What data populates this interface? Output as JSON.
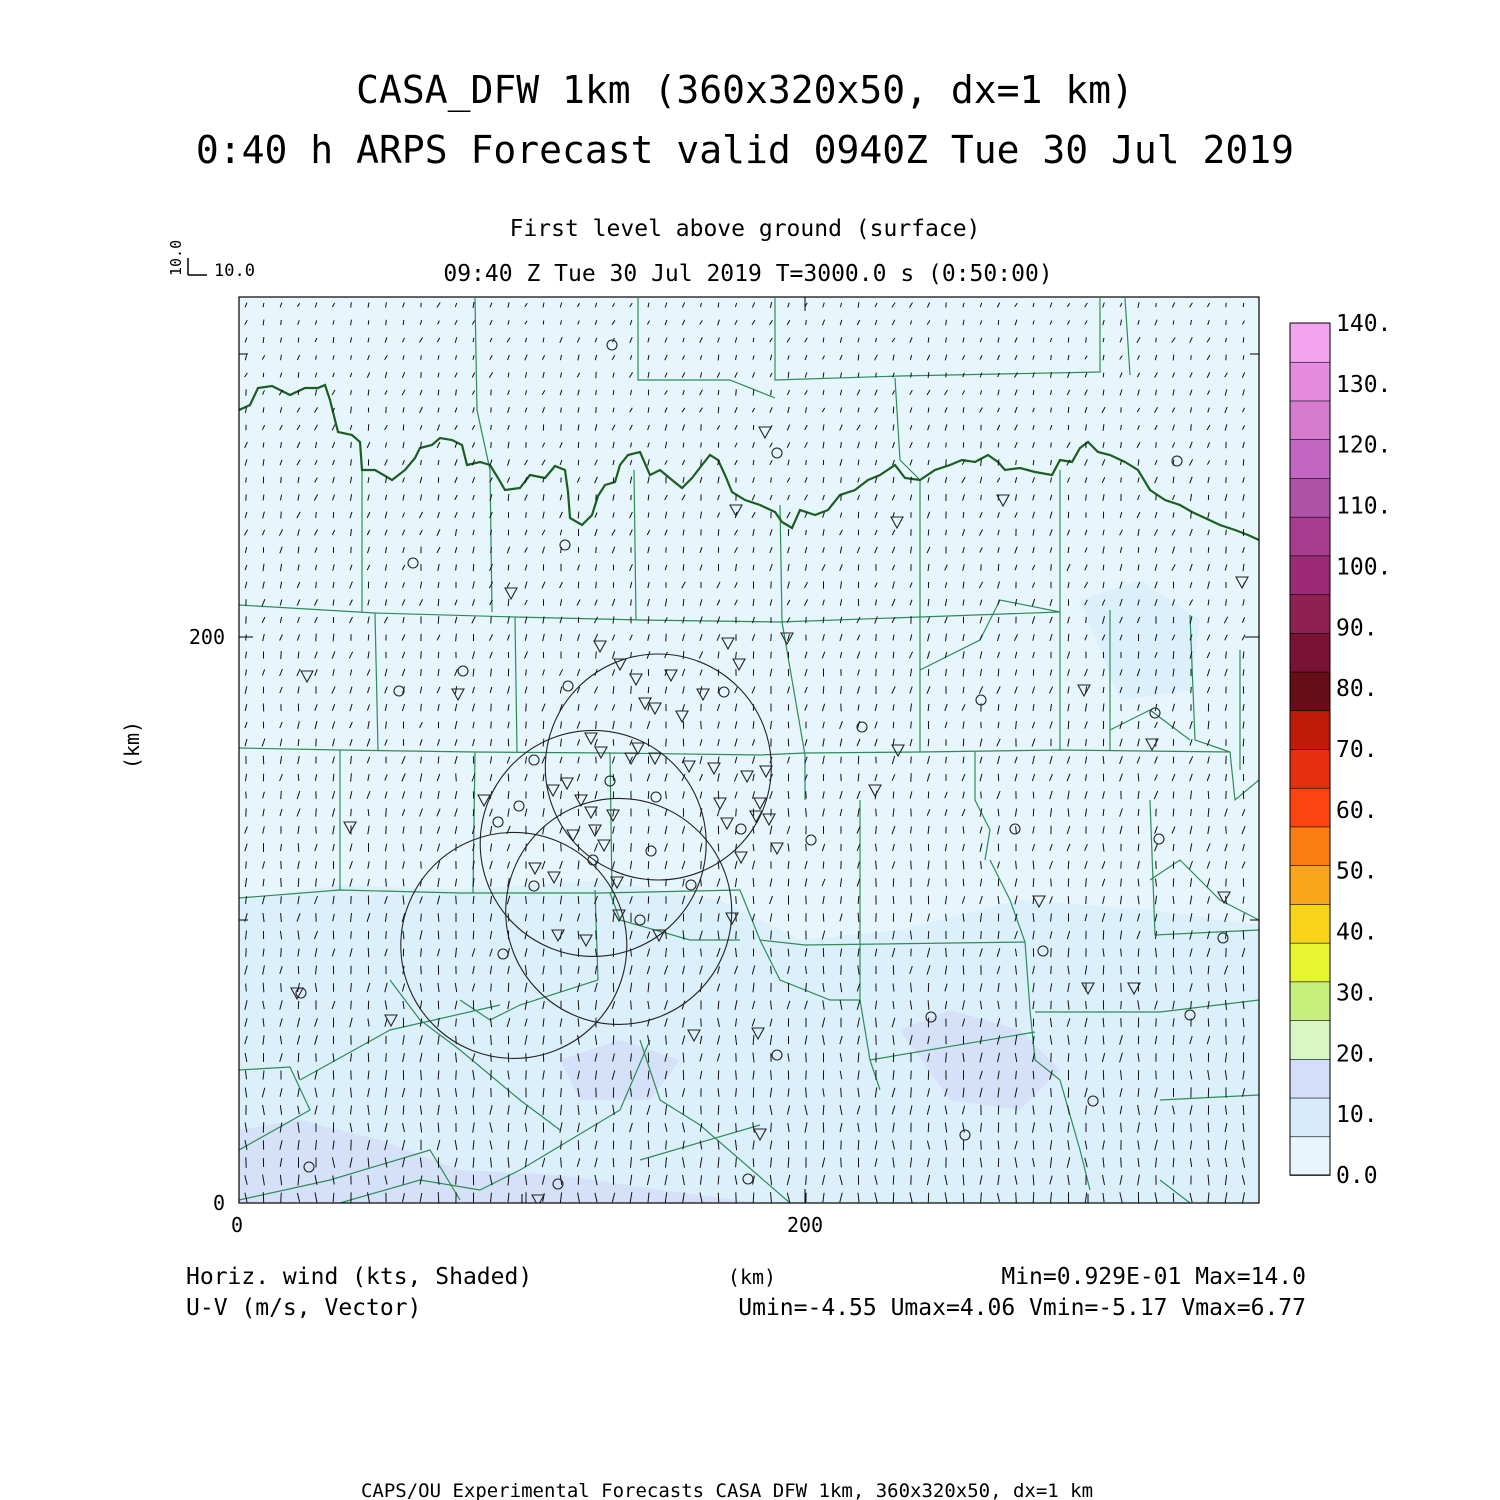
{
  "title": {
    "line1": "CASA_DFW 1km (360x320x50, dx=1 km)",
    "line2": "0:40 h ARPS Forecast valid 0940Z Tue 30 Jul 2019"
  },
  "subtitle": {
    "level": "First level above ground (surface)",
    "time": "09:40 Z Tue 30 Jul 2019    T=3000.0 s (0:50:00)"
  },
  "vector_key": {
    "vertical": "10.0",
    "horizontal": "10.0"
  },
  "axes": {
    "x_label": "(km)",
    "y_label": "(km)",
    "x_ticks": [
      "0",
      "200"
    ],
    "y_ticks": [
      "0",
      "200"
    ],
    "x_range_km": [
      0,
      360
    ],
    "y_range_km": [
      0,
      320
    ]
  },
  "colorbar": {
    "labels": [
      "0.0",
      "10.",
      "20.",
      "30.",
      "40.",
      "50.",
      "60.",
      "70.",
      "80.",
      "90.",
      "100.",
      "110.",
      "120.",
      "130.",
      "140."
    ],
    "colors": [
      "#e6f6fc",
      "#d7ecfb",
      "#d3def8",
      "#d9f7c4",
      "#c7ef7d",
      "#e6f530",
      "#f8d418",
      "#f8a818",
      "#fb7d12",
      "#fc4410",
      "#e62f10",
      "#c11a09",
      "#660d17",
      "#7a1236",
      "#8e2152",
      "#9a2b74",
      "#a73c8e",
      "#b052a8",
      "#c266c1",
      "#d47bd0",
      "#e48ddf",
      "#f3a4ef"
    ]
  },
  "field": {
    "name": "Horiz. wind (kts, Shaded)",
    "vector": "U-V (m/s, Vector)",
    "stats": "Min=0.929E-01 Max=14.0",
    "uv_stats": "Umin=-4.55 Umax=4.06 Vmin=-5.17 Vmax=6.77"
  },
  "footer": "CAPS/OU Experimental Forecasts  CASA DFW 1km, 360x320x50, dx=1 km",
  "map": {
    "river": "#1b5e20",
    "county_line": "#2e8b57",
    "base_fill": "#e6f6fc",
    "light_fill": "#d9eefb",
    "mid_fill": "#d3def8"
  },
  "range_rings_km": [
    {
      "x": 148,
      "y": 154
    },
    {
      "x": 125,
      "y": 127
    },
    {
      "x": 134,
      "y": 103
    },
    {
      "x": 97,
      "y": 91
    }
  ]
}
